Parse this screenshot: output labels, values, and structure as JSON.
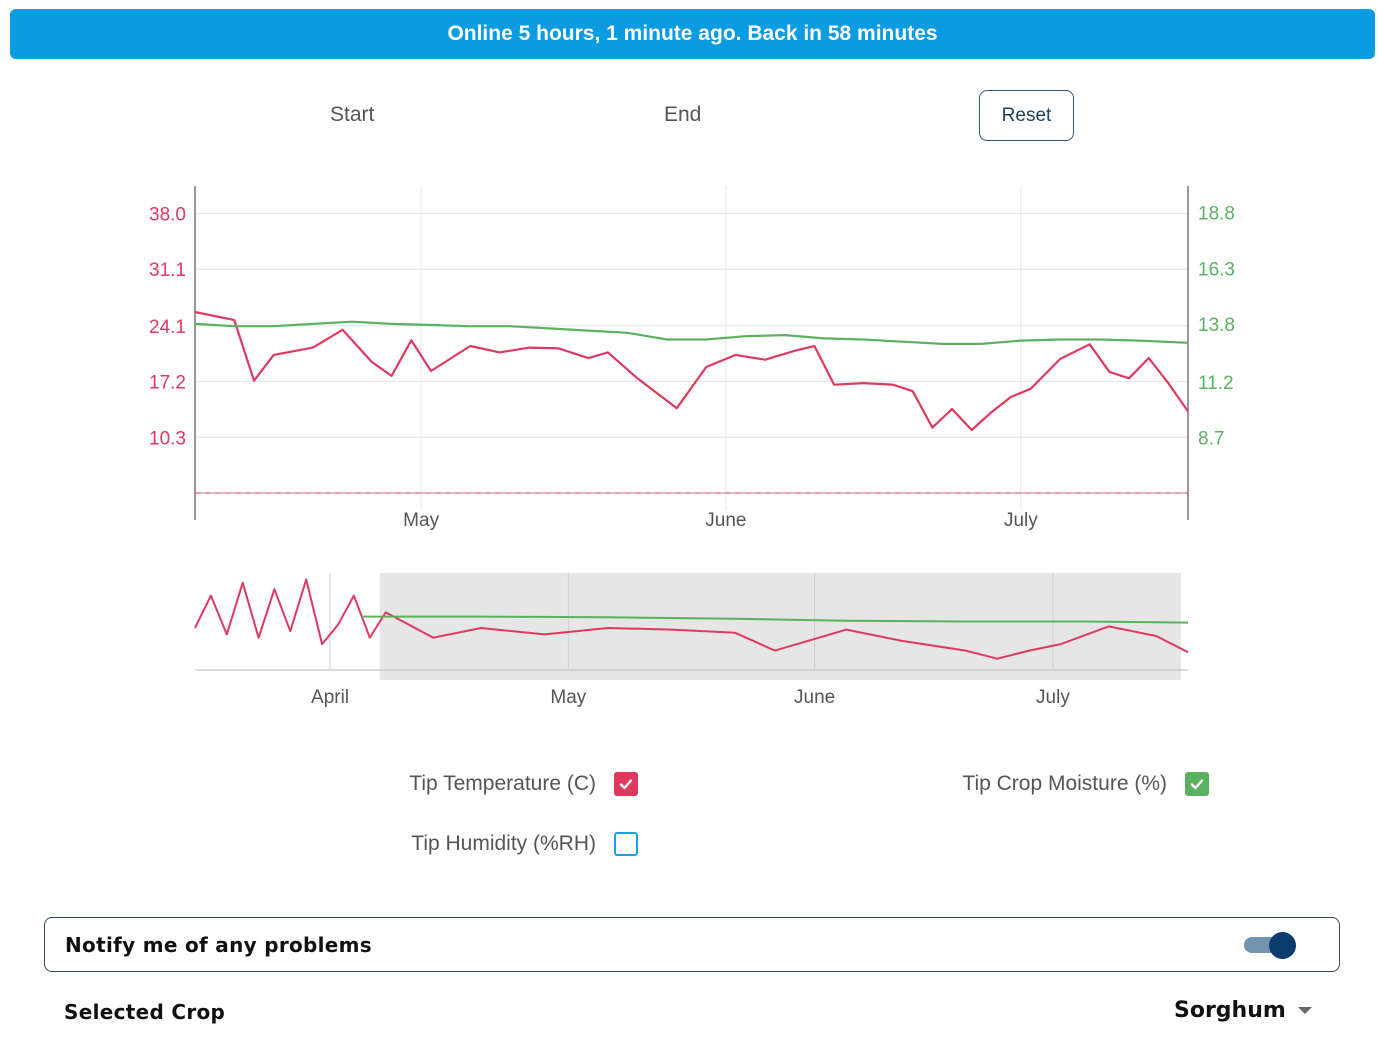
{
  "status_banner": {
    "text": "Online 5 hours, 1 minute ago. Back in 58 minutes"
  },
  "date_range": {
    "start_label": "Start",
    "end_label": "End",
    "reset_label": "Reset"
  },
  "colors": {
    "temperature": "#e0395f",
    "moisture": "#5cb160",
    "humidity": "#1f9fe0",
    "banner": "#0a9be0"
  },
  "chart_data": [
    {
      "type": "line",
      "title": "",
      "x_type": "date",
      "xlim": [
        "2024-04-08",
        "2024-07-18"
      ],
      "x_ticks": [
        "May",
        "June",
        "July"
      ],
      "y_left_ticks": [
        "38.0",
        "31.1",
        "24.1",
        "17.2",
        "10.3"
      ],
      "y_right_ticks": [
        "18.8",
        "16.3",
        "13.8",
        "11.2",
        "8.7"
      ],
      "y_left_range": [
        3.4,
        41.4
      ],
      "y_right_range": [
        6.2,
        20.0
      ],
      "grid": true,
      "series": [
        {
          "name": "Tip Temperature (C)",
          "axis": "left",
          "x": [
            "2024-04-08",
            "2024-04-12",
            "2024-04-14",
            "2024-04-16",
            "2024-04-20",
            "2024-04-23",
            "2024-04-26",
            "2024-04-28",
            "2024-04-30",
            "2024-05-02",
            "2024-05-06",
            "2024-05-09",
            "2024-05-12",
            "2024-05-15",
            "2024-05-18",
            "2024-05-20",
            "2024-05-23",
            "2024-05-27",
            "2024-05-30",
            "2024-06-02",
            "2024-06-05",
            "2024-06-08",
            "2024-06-10",
            "2024-06-12",
            "2024-06-15",
            "2024-06-18",
            "2024-06-20",
            "2024-06-22",
            "2024-06-24",
            "2024-06-26",
            "2024-06-28",
            "2024-06-30",
            "2024-07-02",
            "2024-07-05",
            "2024-07-08",
            "2024-07-10",
            "2024-07-12",
            "2024-07-14",
            "2024-07-16",
            "2024-07-18"
          ],
          "y": [
            25.8,
            24.8,
            17.3,
            20.5,
            21.4,
            23.6,
            19.6,
            17.9,
            22.3,
            18.5,
            21.6,
            20.8,
            21.4,
            21.3,
            20.1,
            20.8,
            17.6,
            13.9,
            19.0,
            20.5,
            19.9,
            21.0,
            21.6,
            16.8,
            17.0,
            16.8,
            16.0,
            11.5,
            13.8,
            11.2,
            13.4,
            15.3,
            16.3,
            20.0,
            21.8,
            18.4,
            17.6,
            20.1,
            17.0,
            13.5
          ]
        },
        {
          "name": "Tip Crop Moisture (%)",
          "axis": "right",
          "x": [
            "2024-04-08",
            "2024-04-12",
            "2024-04-16",
            "2024-04-20",
            "2024-04-24",
            "2024-04-28",
            "2024-05-02",
            "2024-05-06",
            "2024-05-10",
            "2024-05-14",
            "2024-05-18",
            "2024-05-22",
            "2024-05-26",
            "2024-05-30",
            "2024-06-03",
            "2024-06-07",
            "2024-06-11",
            "2024-06-15",
            "2024-06-19",
            "2024-06-23",
            "2024-06-27",
            "2024-07-01",
            "2024-07-05",
            "2024-07-09",
            "2024-07-13",
            "2024-07-18"
          ],
          "y": [
            13.8,
            13.7,
            13.7,
            13.8,
            13.9,
            13.8,
            13.75,
            13.7,
            13.7,
            13.6,
            13.5,
            13.4,
            13.1,
            13.1,
            13.25,
            13.3,
            13.15,
            13.1,
            13.0,
            12.9,
            12.9,
            13.05,
            13.1,
            13.1,
            13.05,
            12.95
          ]
        }
      ]
    },
    {
      "type": "line",
      "title": "",
      "x_type": "date",
      "xlim": [
        "2024-03-15",
        "2024-07-18"
      ],
      "x_ticks": [
        "April",
        "May",
        "June",
        "July"
      ],
      "selected_range": [
        "2024-04-08",
        "2024-07-18"
      ],
      "series": [
        {
          "name": "Tip Temperature (C)",
          "x": [
            "2024-03-15",
            "2024-03-17",
            "2024-03-19",
            "2024-03-21",
            "2024-03-23",
            "2024-03-25",
            "2024-03-27",
            "2024-03-29",
            "2024-03-31",
            "2024-04-02",
            "2024-04-04",
            "2024-04-06",
            "2024-04-08",
            "2024-04-14",
            "2024-04-20",
            "2024-04-28",
            "2024-05-06",
            "2024-05-14",
            "2024-05-22",
            "2024-05-27",
            "2024-06-05",
            "2024-06-12",
            "2024-06-20",
            "2024-06-24",
            "2024-06-28",
            "2024-07-02",
            "2024-07-08",
            "2024-07-14",
            "2024-07-18"
          ],
          "y": [
            21.0,
            31.0,
            19.0,
            35.0,
            18.0,
            33.0,
            20.0,
            36.0,
            16.0,
            22.0,
            31.0,
            18.0,
            25.8,
            18.0,
            21.0,
            19.0,
            21.0,
            20.5,
            19.5,
            14.0,
            20.5,
            17.0,
            14.0,
            11.5,
            14.0,
            16.0,
            21.5,
            18.5,
            13.5
          ]
        },
        {
          "name": "Tip Crop Moisture (%)",
          "x": [
            "2024-04-05",
            "2024-04-20",
            "2024-05-06",
            "2024-05-22",
            "2024-06-05",
            "2024-06-20",
            "2024-07-05",
            "2024-07-18"
          ],
          "y": [
            13.8,
            13.8,
            13.7,
            13.5,
            13.2,
            13.1,
            13.1,
            12.95
          ]
        }
      ]
    }
  ],
  "legend": {
    "temperature": {
      "label": "Tip Temperature (C)",
      "checked": true
    },
    "moisture": {
      "label": "Tip Crop Moisture (%)",
      "checked": true
    },
    "humidity": {
      "label": "Tip Humidity (%RH)",
      "checked": false
    }
  },
  "notify": {
    "label": "Notify me of any problems",
    "enabled": true
  },
  "crop": {
    "label": "Selected Crop",
    "value": "Sorghum"
  }
}
